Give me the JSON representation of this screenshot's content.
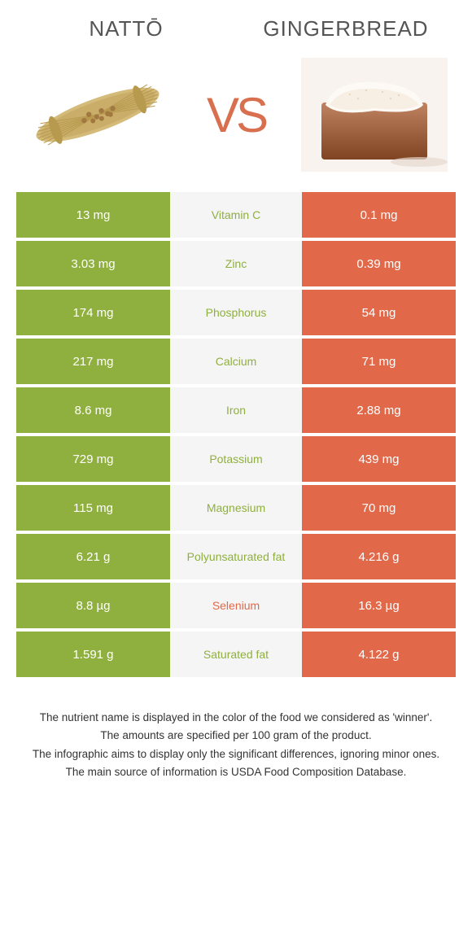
{
  "foodA": {
    "title": "Nattō",
    "color": "#8fb03e"
  },
  "foodB": {
    "title": "Gingerbread",
    "color": "#e1694a"
  },
  "vs": "VS",
  "rows": [
    {
      "left": "13 mg",
      "mid": "Vitamin C",
      "right": "0.1 mg",
      "winner": "A"
    },
    {
      "left": "3.03 mg",
      "mid": "Zinc",
      "right": "0.39 mg",
      "winner": "A"
    },
    {
      "left": "174 mg",
      "mid": "Phosphorus",
      "right": "54 mg",
      "winner": "A"
    },
    {
      "left": "217 mg",
      "mid": "Calcium",
      "right": "71 mg",
      "winner": "A"
    },
    {
      "left": "8.6 mg",
      "mid": "Iron",
      "right": "2.88 mg",
      "winner": "A"
    },
    {
      "left": "729 mg",
      "mid": "Potassium",
      "right": "439 mg",
      "winner": "A"
    },
    {
      "left": "115 mg",
      "mid": "Magnesium",
      "right": "70 mg",
      "winner": "A"
    },
    {
      "left": "6.21 g",
      "mid": "Polyunsaturated fat",
      "right": "4.216 g",
      "winner": "A"
    },
    {
      "left": "8.8 µg",
      "mid": "Selenium",
      "right": "16.3 µg",
      "winner": "B"
    },
    {
      "left": "1.591 g",
      "mid": "Saturated fat",
      "right": "4.122 g",
      "winner": "A"
    }
  ],
  "footer": [
    "The nutrient name is displayed in the color of the food we considered as 'winner'.",
    "The amounts are specified per 100 gram of the product.",
    "The infographic aims to display only the significant differences, ignoring minor ones.",
    "The main source of information is USDA Food Composition Database."
  ]
}
